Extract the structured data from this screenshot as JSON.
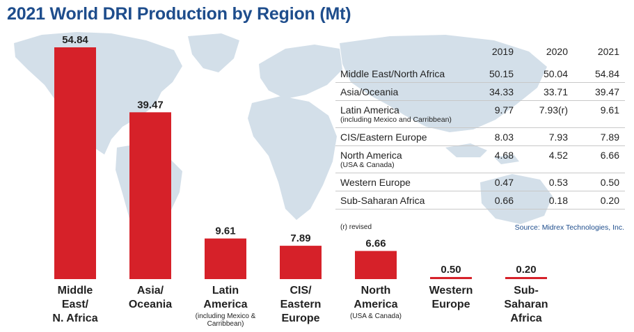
{
  "title": "2021 World DRI Production by Region (Mt)",
  "colors": {
    "bar": "#d62129",
    "title": "#1e4d8c",
    "map": "#d3dfe9"
  },
  "chart_data": {
    "type": "bar",
    "title": "2021 World DRI Production by Region (Mt)",
    "categories": [
      "Middle East/ N. Africa",
      "Asia/ Oceania",
      "Latin America",
      "CIS/ Eastern Europe",
      "North America",
      "Western Europe",
      "Sub-Saharan Africa"
    ],
    "values": [
      54.84,
      39.47,
      9.61,
      7.89,
      6.66,
      0.5,
      0.2
    ],
    "value_labels": [
      "54.84",
      "39.47",
      "9.61",
      "7.89",
      "6.66",
      "0.50",
      "0.20"
    ],
    "ylim": [
      0,
      54.84
    ],
    "grid": false,
    "xlabel": "",
    "ylabel": ""
  },
  "category_labels": [
    {
      "lines": [
        "Middle",
        "East/",
        "N. Africa"
      ],
      "sub": ""
    },
    {
      "lines": [
        "Asia/",
        "Oceania"
      ],
      "sub": ""
    },
    {
      "lines": [
        "Latin",
        "America"
      ],
      "sub": "(including Mexico & Carribbean)"
    },
    {
      "lines": [
        "CIS/",
        "Eastern",
        "Europe"
      ],
      "sub": ""
    },
    {
      "lines": [
        "North",
        "America"
      ],
      "sub": "(USA & Canada)"
    },
    {
      "lines": [
        "Western",
        "Europe"
      ],
      "sub": ""
    },
    {
      "lines": [
        "Sub-",
        "Saharan",
        "Africa"
      ],
      "sub": ""
    }
  ],
  "table": {
    "years": [
      "2019",
      "2020",
      "2021"
    ],
    "rows": [
      {
        "region": "Middle East/North Africa",
        "sub": "",
        "v2019": "50.15",
        "v2020": "50.04",
        "v2021": "54.84"
      },
      {
        "region": "Asia/Oceania",
        "sub": "",
        "v2019": "34.33",
        "v2020": "33.71",
        "v2021": "39.47"
      },
      {
        "region": "Latin America",
        "sub": "(including Mexico and Carribbean)",
        "v2019": "9.77",
        "v2020": "7.93(r)",
        "v2021": "9.61"
      },
      {
        "region": "CIS/Eastern Europe",
        "sub": "",
        "v2019": "8.03",
        "v2020": "7.93",
        "v2021": "7.89"
      },
      {
        "region": "North America",
        "sub": "(USA & Canada)",
        "v2019": "4.68",
        "v2020": "4.52",
        "v2021": "6.66"
      },
      {
        "region": "Western Europe",
        "sub": "",
        "v2019": "0.47",
        "v2020": "0.53",
        "v2021": "0.50"
      },
      {
        "region": "Sub-Saharan Africa",
        "sub": "",
        "v2019": "0.66",
        "v2020": "0.18",
        "v2021": "0.20"
      }
    ],
    "note": "(r) revised",
    "source": "Source: Midrex Technologies, Inc."
  }
}
